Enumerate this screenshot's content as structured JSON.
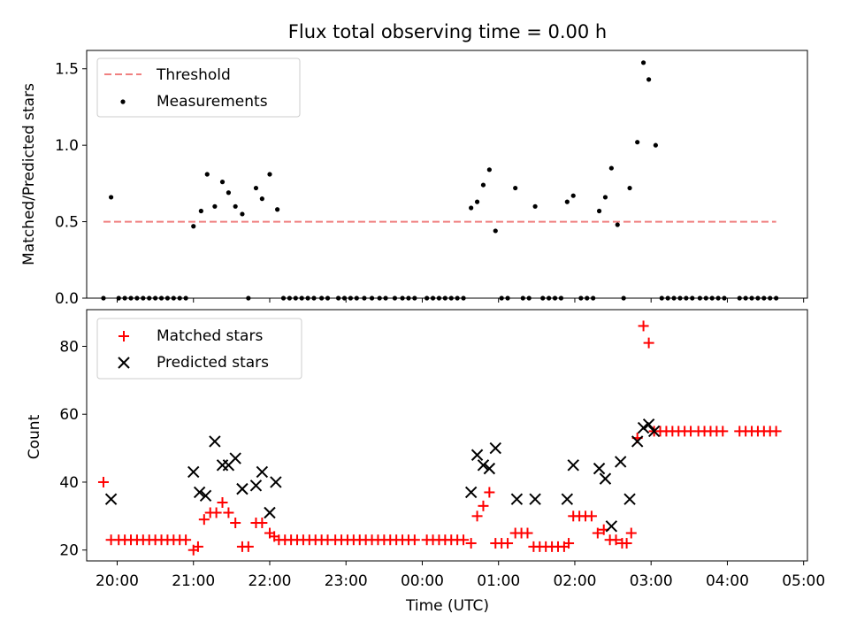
{
  "chart_data": [
    {
      "type": "scatter",
      "title": "Flux total observing time = 0.00 h",
      "ylabel": "Matched/Predicted stars",
      "ylim": [
        0,
        1.62
      ],
      "yticks": [
        0.0,
        0.5,
        1.0,
        1.5
      ],
      "ytick_labels": [
        "0.0",
        "0.5",
        "1.0",
        "1.5"
      ],
      "xlim_hours": [
        -4.4,
        5.05
      ],
      "grid": false,
      "legend_position": "upper-left",
      "threshold": {
        "name": "Threshold",
        "value": 0.5,
        "x_range_hours": [
          -4.18,
          4.64
        ],
        "color": "#f08080",
        "style": "dashed"
      },
      "series": [
        {
          "name": "Measurements",
          "marker": "dot",
          "color": "#000000",
          "points": [
            [
              -4.18,
              0
            ],
            [
              -4.08,
              0.66
            ],
            [
              -3.98,
              0
            ],
            [
              -3.9,
              0
            ],
            [
              -3.82,
              0
            ],
            [
              -3.74,
              0
            ],
            [
              -3.66,
              0
            ],
            [
              -3.58,
              0
            ],
            [
              -3.5,
              0
            ],
            [
              -3.42,
              0
            ],
            [
              -3.34,
              0
            ],
            [
              -3.26,
              0
            ],
            [
              -3.18,
              0
            ],
            [
              -3.1,
              0
            ],
            [
              -3.0,
              0.47
            ],
            [
              -2.9,
              0.57
            ],
            [
              -2.82,
              0.81
            ],
            [
              -2.72,
              0.6
            ],
            [
              -2.62,
              0.76
            ],
            [
              -2.54,
              0.69
            ],
            [
              -2.45,
              0.6
            ],
            [
              -2.36,
              0.55
            ],
            [
              -2.28,
              0
            ],
            [
              -2.18,
              0.72
            ],
            [
              -2.1,
              0.65
            ],
            [
              -2.0,
              0.81
            ],
            [
              -1.9,
              0.58
            ],
            [
              -1.82,
              0
            ],
            [
              -1.74,
              0
            ],
            [
              -1.66,
              0
            ],
            [
              -1.58,
              0
            ],
            [
              -1.5,
              0
            ],
            [
              -1.42,
              0
            ],
            [
              -1.32,
              0
            ],
            [
              -1.24,
              0
            ],
            [
              -1.1,
              0
            ],
            [
              -1.02,
              0
            ],
            [
              -0.94,
              0
            ],
            [
              -0.86,
              0
            ],
            [
              -0.76,
              0
            ],
            [
              -0.66,
              0
            ],
            [
              -0.56,
              0
            ],
            [
              -0.48,
              0
            ],
            [
              -0.36,
              0
            ],
            [
              -0.26,
              0
            ],
            [
              -0.18,
              0
            ],
            [
              -0.1,
              0
            ],
            [
              0.06,
              0
            ],
            [
              0.14,
              0
            ],
            [
              0.22,
              0
            ],
            [
              0.3,
              0
            ],
            [
              0.38,
              0
            ],
            [
              0.46,
              0
            ],
            [
              0.54,
              0
            ],
            [
              0.64,
              0.59
            ],
            [
              0.72,
              0.63
            ],
            [
              0.8,
              0.74
            ],
            [
              0.88,
              0.84
            ],
            [
              0.96,
              0.44
            ],
            [
              1.04,
              0
            ],
            [
              1.12,
              0
            ],
            [
              1.22,
              0.72
            ],
            [
              1.32,
              0
            ],
            [
              1.4,
              0
            ],
            [
              1.48,
              0.6
            ],
            [
              1.58,
              0
            ],
            [
              1.66,
              0
            ],
            [
              1.74,
              0
            ],
            [
              1.82,
              0
            ],
            [
              1.9,
              0.63
            ],
            [
              1.98,
              0.67
            ],
            [
              2.08,
              0
            ],
            [
              2.16,
              0
            ],
            [
              2.24,
              0
            ],
            [
              2.32,
              0.57
            ],
            [
              2.4,
              0.66
            ],
            [
              2.48,
              0.85
            ],
            [
              2.56,
              0.48
            ],
            [
              2.64,
              0
            ],
            [
              2.72,
              0.72
            ],
            [
              2.82,
              1.02
            ],
            [
              2.9,
              1.54
            ],
            [
              2.97,
              1.43
            ],
            [
              3.06,
              1.0
            ],
            [
              3.14,
              0
            ],
            [
              3.22,
              0
            ],
            [
              3.3,
              0
            ],
            [
              3.38,
              0
            ],
            [
              3.46,
              0
            ],
            [
              3.54,
              0
            ],
            [
              3.64,
              0
            ],
            [
              3.72,
              0
            ],
            [
              3.8,
              0
            ],
            [
              3.88,
              0
            ],
            [
              3.96,
              0
            ],
            [
              4.16,
              0
            ],
            [
              4.24,
              0
            ],
            [
              4.32,
              0
            ],
            [
              4.4,
              0
            ],
            [
              4.48,
              0
            ],
            [
              4.56,
              0
            ],
            [
              4.64,
              0
            ]
          ]
        }
      ]
    },
    {
      "type": "scatter",
      "xlabel": "Time (UTC)",
      "ylabel": "Count",
      "ylim": [
        16.8,
        90.8
      ],
      "yticks": [
        20,
        40,
        60,
        80
      ],
      "ytick_labels": [
        "20",
        "40",
        "60",
        "80"
      ],
      "xlim_hours": [
        -4.4,
        5.05
      ],
      "xticks_hours": [
        -4,
        -3,
        -2,
        -1,
        0,
        1,
        2,
        3,
        4,
        5
      ],
      "xtick_labels": [
        "20:00",
        "21:00",
        "22:00",
        "23:00",
        "00:00",
        "01:00",
        "02:00",
        "03:00",
        "04:00",
        "05:00"
      ],
      "grid": false,
      "legend_position": "upper-left",
      "series": [
        {
          "name": "Matched stars",
          "marker": "plus",
          "color": "#ff0000",
          "points": [
            [
              -4.18,
              40
            ],
            [
              -4.08,
              23
            ],
            [
              -3.98,
              23
            ],
            [
              -3.9,
              23
            ],
            [
              -3.82,
              23
            ],
            [
              -3.74,
              23
            ],
            [
              -3.66,
              23
            ],
            [
              -3.58,
              23
            ],
            [
              -3.5,
              23
            ],
            [
              -3.42,
              23
            ],
            [
              -3.34,
              23
            ],
            [
              -3.26,
              23
            ],
            [
              -3.18,
              23
            ],
            [
              -3.1,
              23
            ],
            [
              -3.0,
              20
            ],
            [
              -2.94,
              21
            ],
            [
              -2.86,
              29
            ],
            [
              -2.78,
              31
            ],
            [
              -2.7,
              31
            ],
            [
              -2.62,
              34
            ],
            [
              -2.54,
              31
            ],
            [
              -2.45,
              28
            ],
            [
              -2.36,
              21
            ],
            [
              -2.28,
              21
            ],
            [
              -2.18,
              28
            ],
            [
              -2.1,
              28
            ],
            [
              -2.0,
              25
            ],
            [
              -1.94,
              24
            ],
            [
              -1.88,
              23
            ],
            [
              -1.8,
              23
            ],
            [
              -1.72,
              23
            ],
            [
              -1.64,
              23
            ],
            [
              -1.56,
              23
            ],
            [
              -1.48,
              23
            ],
            [
              -1.4,
              23
            ],
            [
              -1.32,
              23
            ],
            [
              -1.24,
              23
            ],
            [
              -1.14,
              23
            ],
            [
              -1.06,
              23
            ],
            [
              -0.98,
              23
            ],
            [
              -0.9,
              23
            ],
            [
              -0.82,
              23
            ],
            [
              -0.74,
              23
            ],
            [
              -0.66,
              23
            ],
            [
              -0.58,
              23
            ],
            [
              -0.5,
              23
            ],
            [
              -0.42,
              23
            ],
            [
              -0.34,
              23
            ],
            [
              -0.26,
              23
            ],
            [
              -0.18,
              23
            ],
            [
              -0.1,
              23
            ],
            [
              0.06,
              23
            ],
            [
              0.14,
              23
            ],
            [
              0.22,
              23
            ],
            [
              0.3,
              23
            ],
            [
              0.38,
              23
            ],
            [
              0.46,
              23
            ],
            [
              0.54,
              23
            ],
            [
              0.64,
              22
            ],
            [
              0.72,
              30
            ],
            [
              0.8,
              33
            ],
            [
              0.88,
              37
            ],
            [
              0.96,
              22
            ],
            [
              1.04,
              22
            ],
            [
              1.12,
              22
            ],
            [
              1.22,
              25
            ],
            [
              1.3,
              25
            ],
            [
              1.38,
              25
            ],
            [
              1.46,
              21
            ],
            [
              1.54,
              21
            ],
            [
              1.62,
              21
            ],
            [
              1.7,
              21
            ],
            [
              1.78,
              21
            ],
            [
              1.86,
              21
            ],
            [
              1.92,
              22
            ],
            [
              1.98,
              30
            ],
            [
              2.06,
              30
            ],
            [
              2.14,
              30
            ],
            [
              2.22,
              30
            ],
            [
              2.3,
              25
            ],
            [
              2.38,
              26
            ],
            [
              2.46,
              23
            ],
            [
              2.54,
              23
            ],
            [
              2.62,
              22
            ],
            [
              2.68,
              22
            ],
            [
              2.74,
              25
            ],
            [
              2.82,
              53
            ],
            [
              2.9,
              86
            ],
            [
              2.97,
              81
            ],
            [
              3.04,
              55
            ],
            [
              3.12,
              55
            ],
            [
              3.2,
              55
            ],
            [
              3.28,
              55
            ],
            [
              3.36,
              55
            ],
            [
              3.44,
              55
            ],
            [
              3.52,
              55
            ],
            [
              3.62,
              55
            ],
            [
              3.7,
              55
            ],
            [
              3.78,
              55
            ],
            [
              3.86,
              55
            ],
            [
              3.94,
              55
            ],
            [
              4.16,
              55
            ],
            [
              4.24,
              55
            ],
            [
              4.32,
              55
            ],
            [
              4.4,
              55
            ],
            [
              4.48,
              55
            ],
            [
              4.56,
              55
            ],
            [
              4.64,
              55
            ]
          ]
        },
        {
          "name": "Predicted stars",
          "marker": "x",
          "color": "#000000",
          "points": [
            [
              -4.08,
              35
            ],
            [
              -3.0,
              43
            ],
            [
              -2.92,
              37
            ],
            [
              -2.84,
              36
            ],
            [
              -2.72,
              52
            ],
            [
              -2.62,
              45
            ],
            [
              -2.54,
              45
            ],
            [
              -2.45,
              47
            ],
            [
              -2.36,
              38
            ],
            [
              -2.18,
              39
            ],
            [
              -2.1,
              43
            ],
            [
              -2.0,
              31
            ],
            [
              -1.92,
              40
            ],
            [
              0.64,
              37
            ],
            [
              0.72,
              48
            ],
            [
              0.8,
              45
            ],
            [
              0.88,
              44
            ],
            [
              0.96,
              50
            ],
            [
              1.24,
              35
            ],
            [
              1.48,
              35
            ],
            [
              1.9,
              35
            ],
            [
              1.98,
              45
            ],
            [
              2.32,
              44
            ],
            [
              2.4,
              41
            ],
            [
              2.48,
              27
            ],
            [
              2.6,
              46
            ],
            [
              2.72,
              35
            ],
            [
              2.82,
              52
            ],
            [
              2.9,
              56
            ],
            [
              2.97,
              57
            ],
            [
              3.04,
              55
            ]
          ]
        }
      ]
    }
  ]
}
